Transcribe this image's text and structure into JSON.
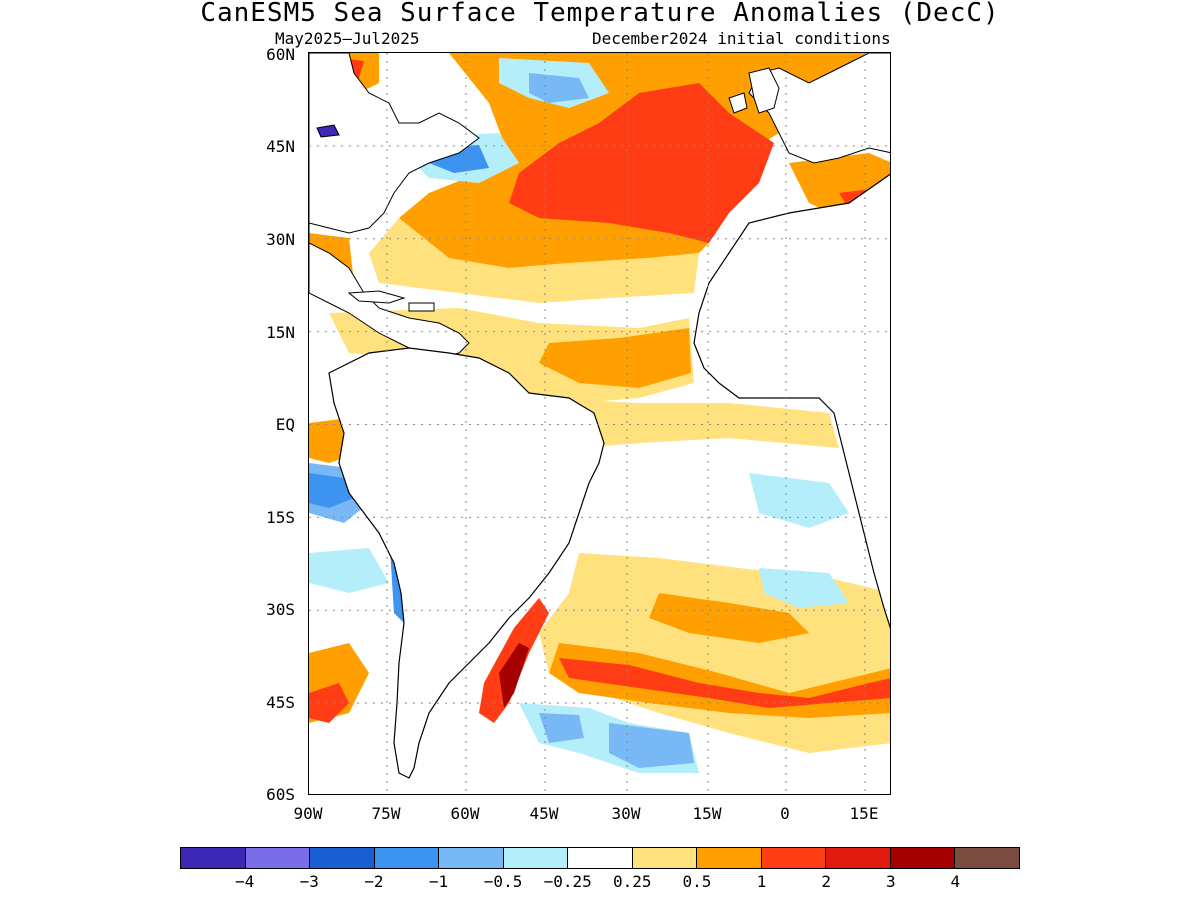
{
  "title": "CanESM5 Sea Surface Temperature Anomalies (DecC)",
  "subtitle_left": "May2025–Jul2025",
  "subtitle_right": "December2024 initial conditions",
  "lat_labels": [
    "60N",
    "45N",
    "30N",
    "15N",
    "EQ",
    "15S",
    "30S",
    "45S",
    "60S"
  ],
  "lon_labels": [
    "90W",
    "75W",
    "60W",
    "45W",
    "30W",
    "15W",
    "0",
    "15E"
  ],
  "legend": {
    "colors": [
      "#3c28b4",
      "#7a6ee8",
      "#1a5fd1",
      "#3c93f0",
      "#78b8f5",
      "#b4eefa",
      "#ffffff",
      "#ffe17e",
      "#ffa000",
      "#ff3c14",
      "#e11a0f",
      "#a50000",
      "#7a4c40"
    ],
    "labels": [
      "−4",
      "−3",
      "−2",
      "−1",
      "−0.5",
      "−0.25",
      "0.25",
      "0.5",
      "1",
      "2",
      "3",
      "4"
    ]
  }
}
